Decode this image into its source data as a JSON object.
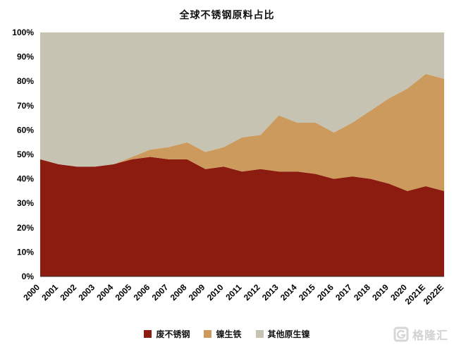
{
  "page": {
    "background": "#ffffff"
  },
  "chart_data": {
    "type": "area",
    "stacked": true,
    "percent_stacked": true,
    "title": "全球不锈钢原料占比",
    "categories": [
      "2000",
      "2001",
      "2002",
      "2003",
      "2004",
      "2005",
      "2006",
      "2007",
      "2008",
      "2009",
      "2010",
      "2011",
      "2012",
      "2013",
      "2014",
      "2015",
      "2016",
      "2017",
      "2018",
      "2019",
      "2020",
      "2021E",
      "2022E"
    ],
    "series": [
      {
        "name": "废不锈钢",
        "color": "#8C1B10",
        "values": [
          48,
          46,
          45,
          45,
          46,
          48,
          49,
          48,
          48,
          44,
          45,
          43,
          44,
          43,
          43,
          42,
          40,
          41,
          40,
          38,
          35,
          37,
          35
        ]
      },
      {
        "name": "镍生铁",
        "color": "#CC9A5C",
        "values": [
          0,
          0,
          0,
          0,
          0,
          1,
          3,
          5,
          7,
          7,
          8,
          14,
          14,
          23,
          20,
          21,
          19,
          22,
          28,
          35,
          42,
          46,
          46
        ]
      },
      {
        "name": "其他原生镍",
        "color": "#C6C3B2",
        "values": [
          52,
          54,
          55,
          55,
          54,
          51,
          48,
          47,
          45,
          49,
          47,
          43,
          42,
          34,
          37,
          37,
          41,
          37,
          32,
          27,
          23,
          17,
          19
        ]
      }
    ],
    "xlabel": "",
    "ylabel": "",
    "ylim": [
      0,
      100
    ],
    "ytick_step": 10,
    "ytick_suffix": "%",
    "grid": false,
    "legend_position": "bottom",
    "axis_line_color": "#333333"
  },
  "watermark": {
    "text": "格隆汇",
    "icon": "gelonghui-logo"
  }
}
